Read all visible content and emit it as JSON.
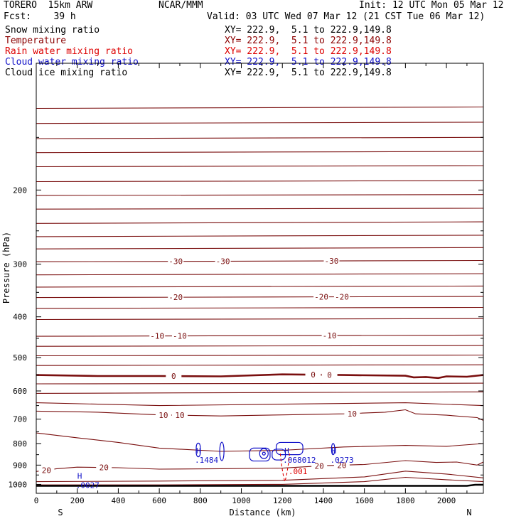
{
  "header": {
    "model": "TORERO  15km ARW",
    "center": "NCAR/MMM",
    "init": "Init: 12 UTC Mon 05 Mar 12",
    "fcst": "Fcst:    39 h",
    "valid": "Valid: 03 UTC Wed 07 Mar 12 (21 CST Tue 06 Mar 12)"
  },
  "fields": [
    {
      "name": "Snow mixing ratio",
      "xy": "XY= 222.9,  5.1 to 222.9,149.8",
      "color": "#000000"
    },
    {
      "name": "Temperature",
      "xy": "XY= 222.9,  5.1 to 222.9,149.8",
      "color": "#8b0000"
    },
    {
      "name": "Rain water mixing ratio",
      "xy": "XY= 222.9,  5.1 to 222.9,149.8",
      "color": "#dd0000"
    },
    {
      "name": "Cloud water mixing ratio",
      "xy": "XY= 222.9,  5.1 to 222.9,149.8",
      "color": "#0000cc"
    },
    {
      "name": "Cloud ice mixing ratio",
      "xy": "XY= 222.9,  5.1 to 222.9,149.8",
      "color": "#000000"
    }
  ],
  "colors": {
    "temperature": "#7a0f0f",
    "rain": "#dd0000",
    "cloud_water": "#1010c8",
    "terrain": "#000000"
  },
  "chart_data": {
    "type": "contour cross-section",
    "xlabel": "Distance (km)",
    "ylabel": "Pressure (hPa)",
    "xlim": [
      0,
      2180
    ],
    "ylim": [
      1050,
      100
    ],
    "y_scale": "log",
    "x_ticks": [
      0,
      200,
      400,
      600,
      800,
      1000,
      1200,
      1400,
      1600,
      1800,
      2000
    ],
    "y_ticks": [
      200,
      300,
      400,
      500,
      600,
      700,
      800,
      900,
      1000
    ],
    "end_labels": {
      "left": "S",
      "right": "N"
    },
    "temperature_contours": [
      {
        "value": 0,
        "label": "0",
        "bold": true,
        "points": [
          [
            0,
            550
          ],
          [
            300,
            553
          ],
          [
            600,
            553
          ],
          [
            900,
            554
          ],
          [
            1200,
            548
          ],
          [
            1500,
            550
          ],
          [
            1800,
            552
          ],
          [
            1840,
            557
          ],
          [
            1900,
            556
          ],
          [
            1960,
            559
          ],
          [
            2000,
            554
          ],
          [
            2100,
            555
          ],
          [
            2180,
            550
          ]
        ],
        "label_x": [
          670,
          1350,
          1430
        ]
      },
      {
        "value": 10,
        "label": "10",
        "points": [
          [
            0,
            670
          ],
          [
            300,
            674
          ],
          [
            600,
            684
          ],
          [
            900,
            688
          ],
          [
            1200,
            684
          ],
          [
            1500,
            680
          ],
          [
            1700,
            674
          ],
          [
            1800,
            665
          ],
          [
            1850,
            680
          ],
          [
            2000,
            685
          ],
          [
            2150,
            694
          ],
          [
            2180,
            705
          ]
        ],
        "label_x": [
          620,
          700,
          1540
        ]
      },
      {
        "value": 20,
        "label": "20",
        "points": [
          [
            0,
            932
          ],
          [
            100,
            918
          ],
          [
            200,
            910
          ],
          [
            400,
            913
          ],
          [
            600,
            920
          ],
          [
            900,
            918
          ],
          [
            1200,
            915
          ],
          [
            1400,
            903
          ],
          [
            1600,
            897
          ],
          [
            1800,
            878
          ],
          [
            1950,
            887
          ],
          [
            2050,
            885
          ],
          [
            2150,
            900
          ],
          [
            2180,
            885
          ]
        ],
        "label_x": [
          50,
          330,
          1380,
          1490
        ]
      },
      {
        "value": -10,
        "label": "-10",
        "points": [
          [
            0,
            445
          ],
          [
            2180,
            442
          ]
        ],
        "label_x": [
          590,
          700,
          1430
        ]
      },
      {
        "value": -20,
        "label": "-20",
        "points": [
          [
            0,
            360
          ],
          [
            2180,
            358
          ]
        ],
        "label_x": [
          680,
          1390,
          1490
        ]
      },
      {
        "value": -30,
        "label": "-30",
        "points": [
          [
            0,
            296
          ],
          [
            2180,
            294
          ]
        ],
        "label_x": [
          680,
          910,
          1440
        ]
      },
      {
        "points": [
          [
            0,
            128
          ],
          [
            2180,
            127
          ]
        ]
      },
      {
        "points": [
          [
            0,
            139
          ],
          [
            2180,
            138
          ]
        ]
      },
      {
        "points": [
          [
            0,
            151
          ],
          [
            2180,
            150
          ]
        ]
      },
      {
        "points": [
          [
            0,
            163
          ],
          [
            2180,
            162
          ]
        ]
      },
      {
        "points": [
          [
            0,
            176
          ],
          [
            2180,
            175
          ]
        ]
      },
      {
        "points": [
          [
            0,
            191
          ],
          [
            2180,
            190
          ]
        ]
      },
      {
        "points": [
          [
            0,
            206
          ],
          [
            2180,
            205
          ]
        ]
      },
      {
        "points": [
          [
            0,
            222
          ],
          [
            2180,
            221
          ]
        ]
      },
      {
        "points": [
          [
            0,
            240
          ],
          [
            2180,
            238
          ]
        ]
      },
      {
        "points": [
          [
            0,
            258
          ],
          [
            2180,
            256
          ]
        ]
      },
      {
        "points": [
          [
            0,
            276
          ],
          [
            2180,
            274
          ]
        ]
      },
      {
        "points": [
          [
            0,
            318
          ],
          [
            2180,
            316
          ]
        ]
      },
      {
        "points": [
          [
            0,
            340
          ],
          [
            2180,
            338
          ]
        ]
      },
      {
        "points": [
          [
            0,
            382
          ],
          [
            2180,
            380
          ]
        ]
      },
      {
        "points": [
          [
            0,
            406
          ],
          [
            2180,
            404
          ]
        ]
      },
      {
        "points": [
          [
            0,
            470
          ],
          [
            2180,
            468
          ]
        ]
      },
      {
        "points": [
          [
            0,
            495
          ],
          [
            2180,
            493
          ]
        ]
      },
      {
        "points": [
          [
            0,
            522
          ],
          [
            2180,
            520
          ]
        ]
      },
      {
        "points": [
          [
            0,
            577
          ],
          [
            2180,
            575
          ]
        ]
      },
      {
        "points": [
          [
            0,
            608
          ],
          [
            2180,
            603
          ],
          [
            2180,
            603
          ]
        ]
      },
      {
        "points": [
          [
            0,
            640
          ],
          [
            600,
            650
          ],
          [
            1200,
            645
          ],
          [
            1800,
            640
          ],
          [
            2180,
            650
          ]
        ]
      },
      {
        "points": [
          [
            0,
            755
          ],
          [
            200,
            775
          ],
          [
            400,
            795
          ],
          [
            600,
            820
          ],
          [
            900,
            835
          ],
          [
            1200,
            830
          ],
          [
            1500,
            815
          ],
          [
            1800,
            808
          ],
          [
            2000,
            812
          ],
          [
            2180,
            800
          ]
        ]
      },
      {
        "points": [
          [
            0,
            985
          ],
          [
            600,
            982
          ],
          [
            1200,
            978
          ],
          [
            1600,
            960
          ],
          [
            1800,
            930
          ],
          [
            2000,
            945
          ],
          [
            2180,
            965
          ]
        ]
      },
      {
        "points": [
          [
            0,
            1003
          ],
          [
            600,
            1003
          ],
          [
            1200,
            1000
          ],
          [
            1600,
            985
          ],
          [
            1800,
            962
          ],
          [
            2000,
            975
          ],
          [
            2180,
            985
          ]
        ]
      }
    ],
    "cloud_water_maxima": [
      {
        "marker": "H",
        "value": ".1484",
        "x": 780,
        "p": 832
      },
      {
        "marker": "H",
        "value": ".0273",
        "x": 1440,
        "p": 832
      },
      {
        "marker": "H",
        "value": ".0027",
        "x": 200,
        "p": 955
      },
      {
        "marker": "H",
        "value": ".068012",
        "x": 1210,
        "p": 832
      }
    ],
    "rain_contours": [
      {
        "label": ".001",
        "x": 1230,
        "p": 945
      }
    ]
  }
}
